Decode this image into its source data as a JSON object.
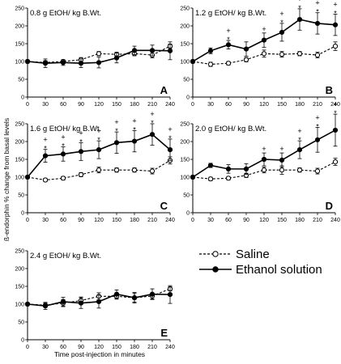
{
  "chart_data": [
    {
      "type": "line",
      "panel": "A",
      "title": "0.8 g EtOH/ kg B.Wt.",
      "x": [
        0,
        30,
        60,
        90,
        120,
        150,
        180,
        210,
        240
      ],
      "xlim": [
        0,
        240
      ],
      "ylim": [
        0,
        250
      ],
      "xticks": [
        0,
        30,
        60,
        90,
        120,
        150,
        180,
        210,
        240
      ],
      "yticks": [
        0,
        50,
        100,
        150,
        200,
        250
      ],
      "series": [
        {
          "name": "Saline",
          "style": "dashed-open-circle",
          "values": [
            100,
            97,
            100,
            105,
            122,
            120,
            122,
            118,
            143
          ],
          "errors": [
            3,
            5,
            5,
            6,
            6,
            6,
            6,
            8,
            6
          ]
        },
        {
          "name": "Ethanol solution",
          "style": "solid-filled-circle",
          "values": [
            100,
            95,
            97,
            95,
            97,
            110,
            131,
            131,
            130
          ],
          "errors": [
            3,
            12,
            8,
            12,
            15,
            14,
            12,
            15,
            25
          ]
        }
      ],
      "significance": []
    },
    {
      "type": "line",
      "panel": "B",
      "title": "1.2 g EtOH/ kg B.Wt.",
      "x": [
        0,
        30,
        60,
        90,
        120,
        150,
        180,
        210,
        240
      ],
      "xlim": [
        0,
        240
      ],
      "ylim": [
        0,
        250
      ],
      "xticks": [
        0,
        30,
        60,
        90,
        120,
        150,
        180,
        210,
        240
      ],
      "yticks": [
        0,
        50,
        100,
        150,
        200,
        250
      ],
      "series": [
        {
          "name": "Saline",
          "style": "dashed-open-circle",
          "values": [
            100,
            92,
            95,
            105,
            122,
            120,
            122,
            118,
            143
          ],
          "errors": [
            3,
            6,
            5,
            6,
            10,
            8,
            6,
            8,
            12
          ]
        },
        {
          "name": "Ethanol solution",
          "style": "solid-filled-circle",
          "values": [
            100,
            130,
            147,
            135,
            160,
            182,
            218,
            207,
            203
          ],
          "errors": [
            3,
            8,
            12,
            20,
            20,
            25,
            30,
            30,
            30
          ]
        }
      ],
      "significance": [
        {
          "x": 60,
          "value": 147,
          "star": true,
          "plus": true
        },
        {
          "x": 120,
          "value": 160,
          "star": false,
          "plus": true
        },
        {
          "x": 150,
          "value": 182,
          "star": true,
          "plus": true
        },
        {
          "x": 180,
          "value": 218,
          "star": true,
          "plus": true
        },
        {
          "x": 210,
          "value": 207,
          "star": true,
          "plus": true
        },
        {
          "x": 240,
          "value": 203,
          "star": true,
          "plus": true
        }
      ]
    },
    {
      "type": "line",
      "panel": "C",
      "title": "1.6 g EtOH/ kg B.Wt.",
      "x": [
        0,
        30,
        60,
        90,
        120,
        150,
        180,
        210,
        240
      ],
      "xlim": [
        0,
        240
      ],
      "ylim": [
        0,
        250
      ],
      "xticks": [
        0,
        30,
        60,
        90,
        120,
        150,
        180,
        210,
        240
      ],
      "yticks": [
        0,
        50,
        100,
        150,
        200,
        250
      ],
      "series": [
        {
          "name": "Saline",
          "style": "dashed-open-circle",
          "values": [
            100,
            92,
            97,
            107,
            120,
            120,
            120,
            117,
            147
          ],
          "errors": [
            3,
            5,
            5,
            6,
            8,
            6,
            6,
            8,
            10
          ]
        },
        {
          "name": "Ethanol solution",
          "style": "solid-filled-circle",
          "values": [
            100,
            160,
            165,
            172,
            177,
            197,
            201,
            220,
            177
          ],
          "errors": [
            3,
            18,
            20,
            25,
            25,
            30,
            30,
            30,
            30
          ]
        }
      ],
      "significance": [
        {
          "x": 30,
          "value": 160,
          "star": true,
          "plus": true
        },
        {
          "x": 60,
          "value": 165,
          "star": true,
          "plus": true
        },
        {
          "x": 90,
          "value": 172,
          "star": true,
          "plus": true
        },
        {
          "x": 120,
          "value": 177,
          "star": true,
          "plus": true
        },
        {
          "x": 150,
          "value": 197,
          "star": true,
          "plus": true
        },
        {
          "x": 180,
          "value": 201,
          "star": true,
          "plus": true
        },
        {
          "x": 210,
          "value": 220,
          "star": true,
          "plus": true
        },
        {
          "x": 240,
          "value": 177,
          "star": true,
          "plus": true
        }
      ]
    },
    {
      "type": "line",
      "panel": "D",
      "title": "2.0 g EtOH/ kg B.Wt.",
      "x": [
        0,
        30,
        60,
        90,
        120,
        150,
        180,
        210,
        240
      ],
      "xlim": [
        0,
        240
      ],
      "ylim": [
        0,
        250
      ],
      "xticks": [
        0,
        30,
        60,
        90,
        120,
        150,
        180,
        210,
        240
      ],
      "yticks": [
        0,
        50,
        100,
        150,
        200,
        250
      ],
      "series": [
        {
          "name": "Saline",
          "style": "dashed-open-circle",
          "values": [
            100,
            95,
            97,
            105,
            120,
            120,
            120,
            117,
            143
          ],
          "errors": [
            3,
            5,
            5,
            6,
            8,
            12,
            6,
            8,
            10
          ]
        },
        {
          "name": "Ethanol solution",
          "style": "solid-filled-circle",
          "values": [
            100,
            133,
            123,
            123,
            150,
            148,
            177,
            205,
            232
          ],
          "errors": [
            3,
            6,
            12,
            15,
            18,
            20,
            25,
            35,
            45
          ]
        }
      ],
      "significance": [
        {
          "x": 120,
          "value": 150,
          "star": false,
          "plus": true
        },
        {
          "x": 150,
          "value": 148,
          "star": false,
          "plus": true
        },
        {
          "x": 180,
          "value": 177,
          "star": true,
          "plus": true
        },
        {
          "x": 210,
          "value": 205,
          "star": true,
          "plus": true
        },
        {
          "x": 240,
          "value": 232,
          "star": true,
          "plus": true
        }
      ]
    },
    {
      "type": "line",
      "panel": "E",
      "title": "2.4 g EtOH/ kg B.Wt.",
      "x": [
        0,
        30,
        60,
        90,
        120,
        150,
        180,
        210,
        240
      ],
      "xlim": [
        0,
        240
      ],
      "ylim": [
        0,
        250
      ],
      "xticks": [
        0,
        30,
        60,
        90,
        120,
        150,
        180,
        210,
        240
      ],
      "yticks": [
        0,
        50,
        100,
        150,
        200,
        250
      ],
      "series": [
        {
          "name": "Saline",
          "style": "dashed-open-circle",
          "values": [
            100,
            97,
            103,
            110,
            122,
            122,
            118,
            123,
            143
          ],
          "errors": [
            3,
            6,
            10,
            10,
            10,
            8,
            12,
            8,
            6
          ]
        },
        {
          "name": "Ethanol solution",
          "style": "solid-filled-circle",
          "values": [
            100,
            95,
            107,
            103,
            107,
            128,
            118,
            128,
            127
          ],
          "errors": [
            3,
            10,
            12,
            15,
            18,
            12,
            15,
            15,
            25
          ]
        }
      ],
      "significance": []
    }
  ],
  "legend": [
    {
      "label": "Saline",
      "style": "dashed-open-circle"
    },
    {
      "label": "Ethanol solution",
      "style": "solid-filled-circle"
    }
  ],
  "y_axis_label": "ß-endorphin % change from basal levels",
  "x_axis_label": "Time post-injection in minutes",
  "star_symbol": "*",
  "plus_symbol": "+",
  "colors": {
    "line": "#000000",
    "background": "#ffffff"
  }
}
